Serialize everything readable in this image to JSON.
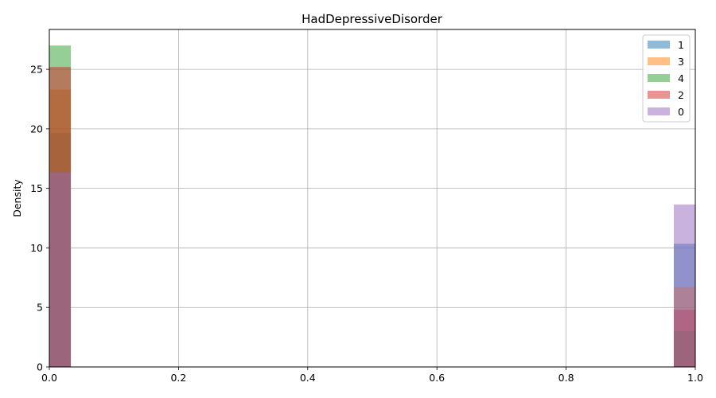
{
  "chart_data": {
    "type": "bar",
    "title": "HadDepressiveDisorder",
    "xlabel": "",
    "ylabel": "Density",
    "xlim": [
      0,
      1
    ],
    "ylim": [
      0,
      28.35
    ],
    "x_ticks": [
      "0.0",
      "0.2",
      "0.4",
      "0.6",
      "0.8",
      "1.0"
    ],
    "y_ticks": [
      "0",
      "5",
      "10",
      "15",
      "20",
      "25"
    ],
    "grid": true,
    "legend_position": "top-right",
    "bin_width": 0.0333,
    "bins": [
      {
        "x0": 0.0,
        "x1": 0.0333
      },
      {
        "x0": 0.9667,
        "x1": 1.0
      }
    ],
    "series": [
      {
        "name": "1",
        "color": "#1f77b4",
        "values": [
          19.65,
          10.35
        ]
      },
      {
        "name": "3",
        "color": "#ff7f0e",
        "values": [
          23.3,
          6.7
        ]
      },
      {
        "name": "4",
        "color": "#2ca02c",
        "values": [
          27.0,
          3.0
        ]
      },
      {
        "name": "2",
        "color": "#d62728",
        "values": [
          25.2,
          4.8
        ]
      },
      {
        "name": "0",
        "color": "#9467bd",
        "values": [
          16.35,
          13.65
        ]
      }
    ],
    "opacity": 0.5
  }
}
